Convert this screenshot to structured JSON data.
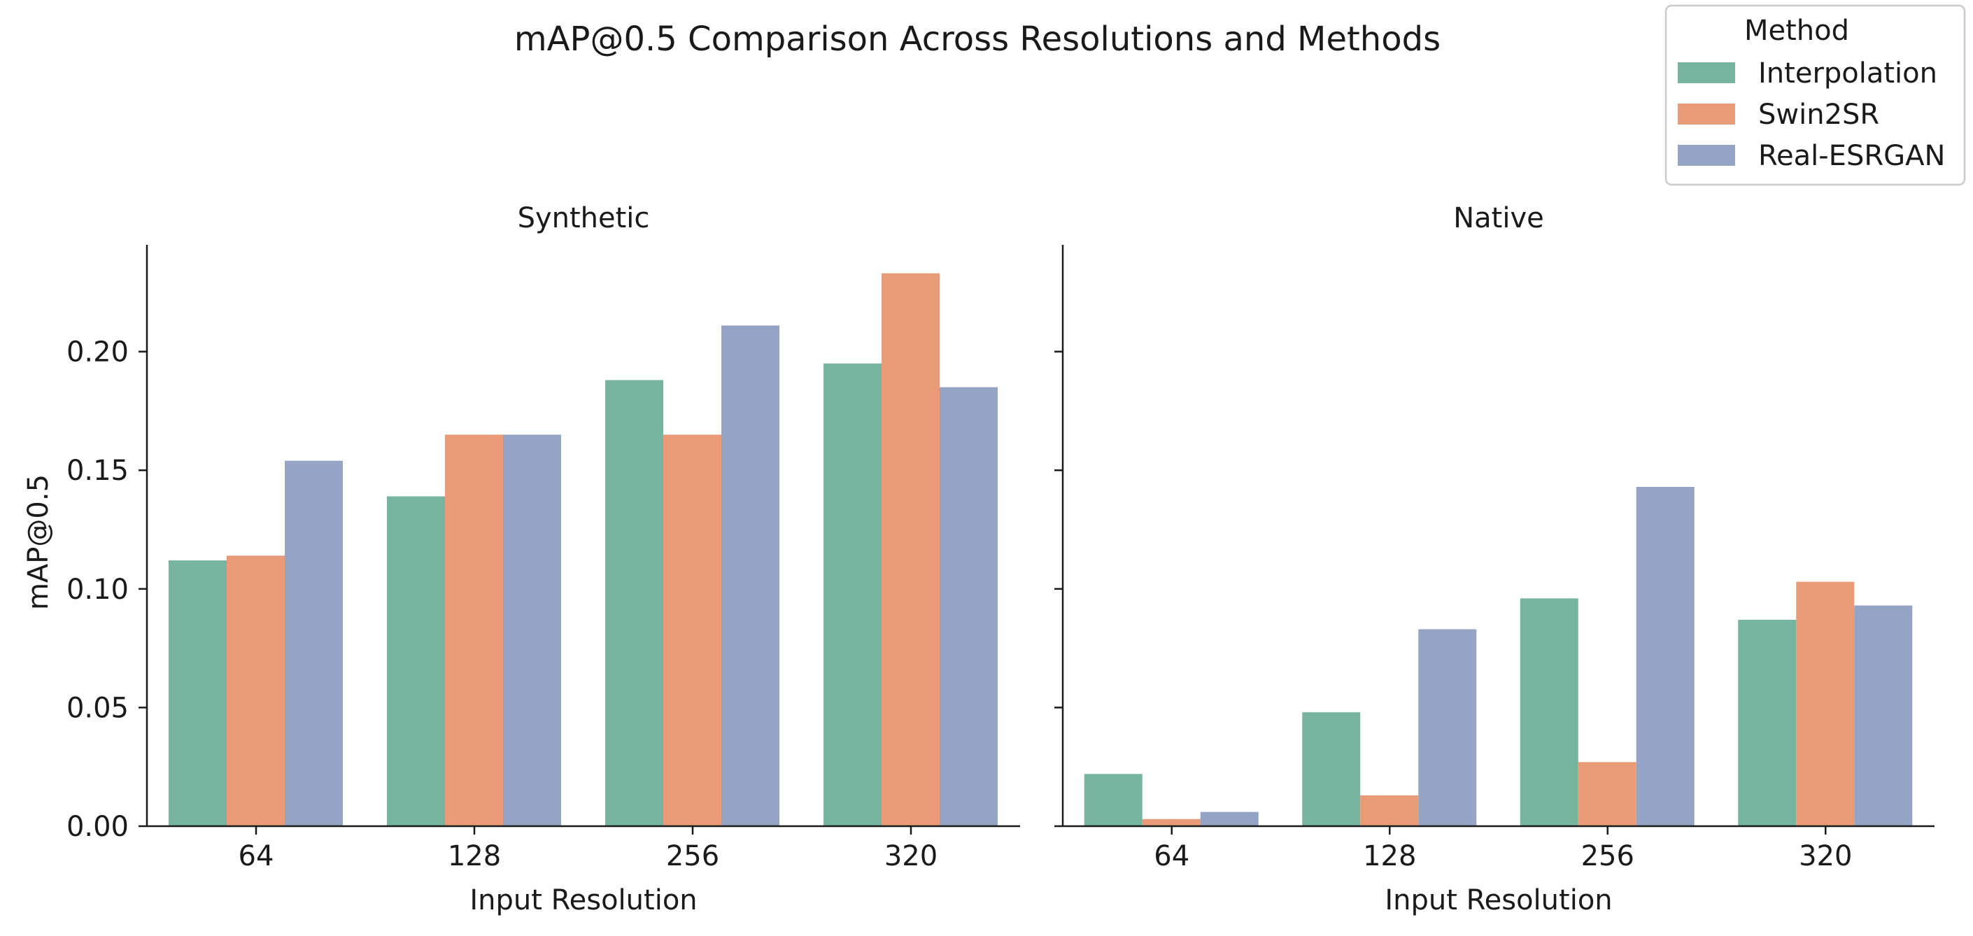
{
  "chart_data": {
    "type": "bar",
    "title": "mAP@0.5 Comparison Across Resolutions and Methods",
    "ylabel": "mAP@0.5",
    "ylim": [
      0,
      0.245
    ],
    "yticks": [
      0.0,
      0.05,
      0.1,
      0.15,
      0.2
    ],
    "ytick_labels": [
      "0.00",
      "0.05",
      "0.10",
      "0.15",
      "0.20"
    ],
    "grid": false,
    "legend": {
      "title": "Method",
      "placement": "top-right",
      "entries": [
        "Interpolation",
        "Swin2SR",
        "Real-ESRGAN"
      ]
    },
    "colors": {
      "Interpolation": "#75b5a0",
      "Swin2SR": "#e99a77",
      "Real-ESRGAN": "#95a4c4"
    },
    "panels": [
      {
        "title": "Synthetic",
        "xlabel": "Input Resolution",
        "categories": [
          "64",
          "128",
          "256",
          "320"
        ],
        "series": [
          {
            "name": "Interpolation",
            "values": [
              0.112,
              0.139,
              0.188,
              0.195
            ]
          },
          {
            "name": "Swin2SR",
            "values": [
              0.114,
              0.165,
              0.165,
              0.233
            ]
          },
          {
            "name": "Real-ESRGAN",
            "values": [
              0.154,
              0.165,
              0.211,
              0.185
            ]
          }
        ]
      },
      {
        "title": "Native",
        "xlabel": "Input Resolution",
        "categories": [
          "64",
          "128",
          "256",
          "320"
        ],
        "series": [
          {
            "name": "Interpolation",
            "values": [
              0.022,
              0.048,
              0.096,
              0.087
            ]
          },
          {
            "name": "Swin2SR",
            "values": [
              0.003,
              0.013,
              0.027,
              0.103
            ]
          },
          {
            "name": "Real-ESRGAN",
            "values": [
              0.006,
              0.083,
              0.143,
              0.093
            ]
          }
        ]
      }
    ]
  }
}
